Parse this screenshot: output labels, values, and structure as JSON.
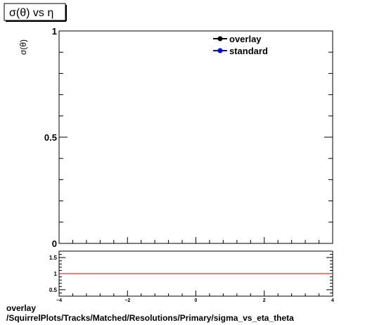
{
  "chart_data": [
    {
      "type": "line",
      "title": "σ(θ) vs  η",
      "ylabel": "σ(θ)",
      "xlabel": "",
      "xlim": [
        -4,
        4
      ],
      "ylim": [
        0,
        1
      ],
      "y_ticks": [
        "0",
        "0.5",
        "1"
      ],
      "grid": false,
      "legend_position": "top-right",
      "series": [
        {
          "name": "overlay",
          "color": "#000000",
          "marker": "circle",
          "x": [],
          "y": []
        },
        {
          "name": "standard",
          "color": "#0000ff",
          "marker": "circle",
          "x": [],
          "y": []
        }
      ]
    },
    {
      "type": "line",
      "xlim": [
        -4,
        4
      ],
      "ylim": [
        0.3,
        1.7
      ],
      "x_ticks": [
        "−4",
        "−2",
        "0",
        "2",
        "4"
      ],
      "y_ticks": [
        "0.5",
        "1",
        "1.5"
      ],
      "grid": false,
      "series": [
        {
          "color": "#cc0000",
          "x": [
            -4,
            4
          ],
          "y": [
            1,
            1
          ]
        }
      ]
    }
  ],
  "footer": {
    "line1": "overlay",
    "line2": "/SquirrelPlots/Tracks/Matched/Resolutions/Primary/sigma_vs_eta_theta"
  }
}
